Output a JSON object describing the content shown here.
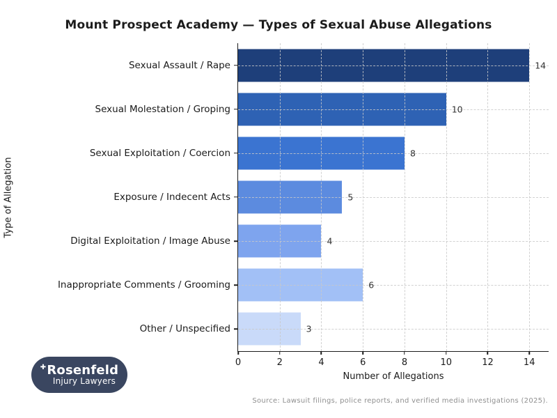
{
  "title": "Mount Prospect Academy — Types of Sexual Abuse Allegations",
  "chart_data": {
    "type": "bar",
    "orientation": "horizontal",
    "title": "Mount Prospect Academy — Types of Sexual Abuse Allegations",
    "xlabel": "Number of Allegations",
    "ylabel": "Type of Allegation",
    "categories": [
      "Sexual Assault / Rape",
      "Sexual Molestation / Groping",
      "Sexual Exploitation / Coercion",
      "Exposure / Indecent Acts",
      "Digital Exploitation / Image Abuse",
      "Inappropriate Comments / Grooming",
      "Other / Unspecified"
    ],
    "values": [
      14,
      10,
      8,
      5,
      4,
      6,
      3
    ],
    "value_labels": [
      "14",
      "10",
      "8",
      "5",
      "4",
      "6",
      "3"
    ],
    "bar_colors": [
      "#1e3f7a",
      "#2e62b4",
      "#3b74d1",
      "#5c8bdf",
      "#7ea4ee",
      "#a2c0f6",
      "#c9daf9"
    ],
    "xticks": [
      0,
      2,
      4,
      6,
      8,
      10,
      12,
      14
    ],
    "xlim": [
      0,
      14.93
    ],
    "grid": "dashed, both axes",
    "legend": "none",
    "background": "#ffffff"
  },
  "footer": {
    "source": "Source: Lawsuit filings, police reports, and verified media investigations (2025)."
  },
  "logo": {
    "name": "Rosenfeld",
    "tagline": "Injury Lawyers",
    "cross_glyph": "✚",
    "bg_color": "#3a4660"
  }
}
